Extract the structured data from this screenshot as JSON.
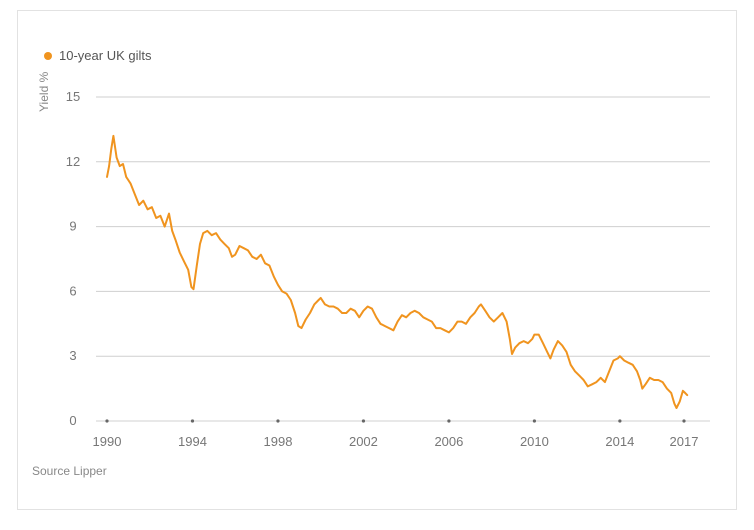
{
  "chart_data": {
    "type": "line",
    "title": "",
    "xlabel": "",
    "ylabel": "Yield %",
    "source": "Source Lipper",
    "xlim": [
      1990,
      2017
    ],
    "ylim": [
      0,
      15
    ],
    "x_ticks": [
      "1990",
      "1994",
      "1998",
      "2002",
      "2006",
      "2010",
      "2014",
      "2017"
    ],
    "y_ticks": [
      "0",
      "3",
      "6",
      "9",
      "12",
      "15"
    ],
    "grid": "horizontal",
    "legend": "top-left",
    "series": [
      {
        "name": "10-year UK gilts",
        "color": "#f0941f",
        "points": [
          [
            1990.0,
            11.3
          ],
          [
            1990.1,
            11.8
          ],
          [
            1990.2,
            12.6
          ],
          [
            1990.3,
            13.2
          ],
          [
            1990.45,
            12.2
          ],
          [
            1990.6,
            11.8
          ],
          [
            1990.75,
            11.9
          ],
          [
            1990.9,
            11.3
          ],
          [
            1991.1,
            11.0
          ],
          [
            1991.3,
            10.5
          ],
          [
            1991.5,
            10.0
          ],
          [
            1991.7,
            10.2
          ],
          [
            1991.9,
            9.8
          ],
          [
            1992.1,
            9.9
          ],
          [
            1992.3,
            9.4
          ],
          [
            1992.5,
            9.5
          ],
          [
            1992.7,
            9.0
          ],
          [
            1992.9,
            9.6
          ],
          [
            1993.05,
            8.8
          ],
          [
            1993.2,
            8.4
          ],
          [
            1993.4,
            7.8
          ],
          [
            1993.6,
            7.4
          ],
          [
            1993.8,
            7.0
          ],
          [
            1993.95,
            6.2
          ],
          [
            1994.05,
            6.1
          ],
          [
            1994.2,
            7.2
          ],
          [
            1994.35,
            8.2
          ],
          [
            1994.5,
            8.7
          ],
          [
            1994.7,
            8.8
          ],
          [
            1994.9,
            8.6
          ],
          [
            1995.1,
            8.7
          ],
          [
            1995.3,
            8.4
          ],
          [
            1995.5,
            8.2
          ],
          [
            1995.7,
            8.0
          ],
          [
            1995.85,
            7.6
          ],
          [
            1996.0,
            7.7
          ],
          [
            1996.2,
            8.1
          ],
          [
            1996.4,
            8.0
          ],
          [
            1996.6,
            7.9
          ],
          [
            1996.8,
            7.6
          ],
          [
            1997.0,
            7.5
          ],
          [
            1997.2,
            7.7
          ],
          [
            1997.4,
            7.3
          ],
          [
            1997.6,
            7.2
          ],
          [
            1997.8,
            6.7
          ],
          [
            1998.0,
            6.3
          ],
          [
            1998.2,
            6.0
          ],
          [
            1998.4,
            5.9
          ],
          [
            1998.6,
            5.6
          ],
          [
            1998.8,
            5.0
          ],
          [
            1998.95,
            4.4
          ],
          [
            1999.1,
            4.3
          ],
          [
            1999.3,
            4.7
          ],
          [
            1999.5,
            5.0
          ],
          [
            1999.7,
            5.4
          ],
          [
            1999.9,
            5.6
          ],
          [
            2000.0,
            5.7
          ],
          [
            2000.2,
            5.4
          ],
          [
            2000.4,
            5.3
          ],
          [
            2000.6,
            5.3
          ],
          [
            2000.8,
            5.2
          ],
          [
            2001.0,
            5.0
          ],
          [
            2001.2,
            5.0
          ],
          [
            2001.4,
            5.2
          ],
          [
            2001.6,
            5.1
          ],
          [
            2001.8,
            4.8
          ],
          [
            2002.0,
            5.1
          ],
          [
            2002.2,
            5.3
          ],
          [
            2002.4,
            5.2
          ],
          [
            2002.6,
            4.8
          ],
          [
            2002.8,
            4.5
          ],
          [
            2003.0,
            4.4
          ],
          [
            2003.2,
            4.3
          ],
          [
            2003.4,
            4.2
          ],
          [
            2003.6,
            4.6
          ],
          [
            2003.8,
            4.9
          ],
          [
            2004.0,
            4.8
          ],
          [
            2004.2,
            5.0
          ],
          [
            2004.4,
            5.1
          ],
          [
            2004.6,
            5.0
          ],
          [
            2004.8,
            4.8
          ],
          [
            2005.0,
            4.7
          ],
          [
            2005.2,
            4.6
          ],
          [
            2005.4,
            4.3
          ],
          [
            2005.6,
            4.3
          ],
          [
            2005.8,
            4.2
          ],
          [
            2006.0,
            4.1
          ],
          [
            2006.2,
            4.3
          ],
          [
            2006.4,
            4.6
          ],
          [
            2006.6,
            4.6
          ],
          [
            2006.8,
            4.5
          ],
          [
            2007.0,
            4.8
          ],
          [
            2007.2,
            5.0
          ],
          [
            2007.4,
            5.3
          ],
          [
            2007.5,
            5.4
          ],
          [
            2007.7,
            5.1
          ],
          [
            2007.9,
            4.8
          ],
          [
            2008.1,
            4.6
          ],
          [
            2008.3,
            4.8
          ],
          [
            2008.5,
            5.0
          ],
          [
            2008.7,
            4.6
          ],
          [
            2008.85,
            3.8
          ],
          [
            2008.95,
            3.1
          ],
          [
            2009.1,
            3.4
          ],
          [
            2009.3,
            3.6
          ],
          [
            2009.5,
            3.7
          ],
          [
            2009.7,
            3.6
          ],
          [
            2009.9,
            3.8
          ],
          [
            2010.0,
            4.0
          ],
          [
            2010.2,
            4.0
          ],
          [
            2010.4,
            3.6
          ],
          [
            2010.6,
            3.2
          ],
          [
            2010.75,
            2.9
          ],
          [
            2010.9,
            3.3
          ],
          [
            2011.1,
            3.7
          ],
          [
            2011.3,
            3.5
          ],
          [
            2011.5,
            3.2
          ],
          [
            2011.7,
            2.6
          ],
          [
            2011.9,
            2.3
          ],
          [
            2012.1,
            2.1
          ],
          [
            2012.3,
            1.9
          ],
          [
            2012.5,
            1.6
          ],
          [
            2012.7,
            1.7
          ],
          [
            2012.9,
            1.8
          ],
          [
            2013.1,
            2.0
          ],
          [
            2013.3,
            1.8
          ],
          [
            2013.5,
            2.3
          ],
          [
            2013.7,
            2.8
          ],
          [
            2013.9,
            2.9
          ],
          [
            2014.0,
            3.0
          ],
          [
            2014.2,
            2.8
          ],
          [
            2014.4,
            2.7
          ],
          [
            2014.6,
            2.6
          ],
          [
            2014.8,
            2.3
          ],
          [
            2014.95,
            1.9
          ],
          [
            2015.05,
            1.5
          ],
          [
            2015.2,
            1.7
          ],
          [
            2015.4,
            2.0
          ],
          [
            2015.6,
            1.9
          ],
          [
            2015.8,
            1.9
          ],
          [
            2016.0,
            1.8
          ],
          [
            2016.2,
            1.5
          ],
          [
            2016.4,
            1.3
          ],
          [
            2016.55,
            0.8
          ],
          [
            2016.65,
            0.6
          ],
          [
            2016.8,
            0.9
          ],
          [
            2016.95,
            1.4
          ],
          [
            2017.05,
            1.3
          ],
          [
            2017.15,
            1.2
          ]
        ]
      }
    ]
  }
}
